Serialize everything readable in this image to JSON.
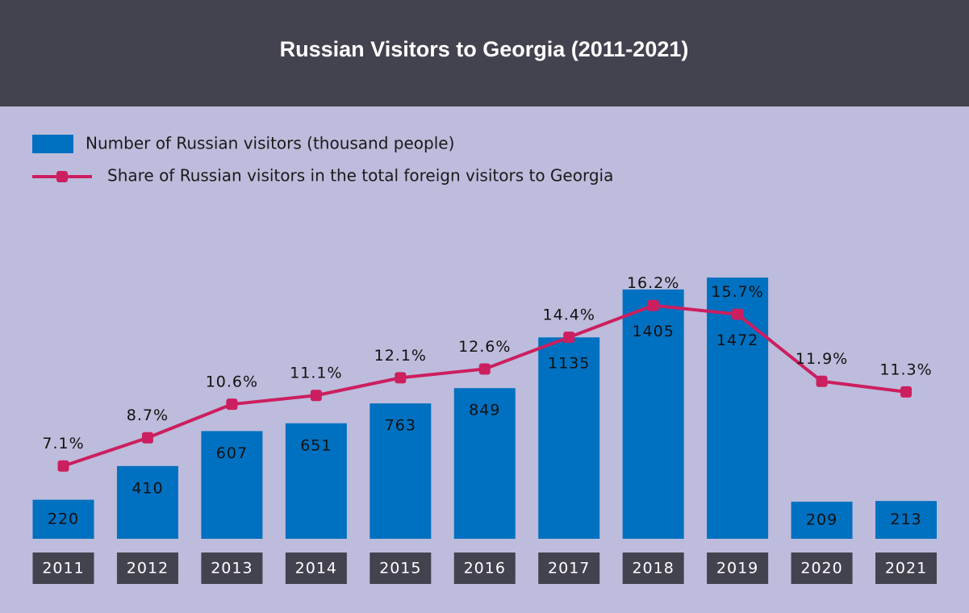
{
  "chart_data": {
    "type": "bar-line",
    "title": "Russian Visitors to Georgia (2011-2021)",
    "categories": [
      "2011",
      "2012",
      "2013",
      "2014",
      "2015",
      "2016",
      "2017",
      "2018",
      "2019",
      "2020",
      "2021"
    ],
    "series": [
      {
        "name": "Number of Russian visitors (thousand people)",
        "type": "bar",
        "color": "#0070c0",
        "values": [
          220,
          410,
          607,
          651,
          763,
          849,
          1135,
          1405,
          1472,
          209,
          213
        ]
      },
      {
        "name": "Share of Russian visitors in the total foreign visitors to Georgia",
        "type": "line",
        "color": "#cc1f5f",
        "values": [
          7.1,
          8.7,
          10.6,
          11.1,
          12.1,
          12.6,
          14.4,
          16.2,
          15.7,
          11.9,
          11.3
        ],
        "value_labels": [
          "7.1%",
          "8.7%",
          "10.6%",
          "11.1%",
          "12.1%",
          "12.6%",
          "14.4%",
          "16.2%",
          "15.7%",
          "11.9%",
          "11.3%"
        ]
      }
    ]
  }
}
